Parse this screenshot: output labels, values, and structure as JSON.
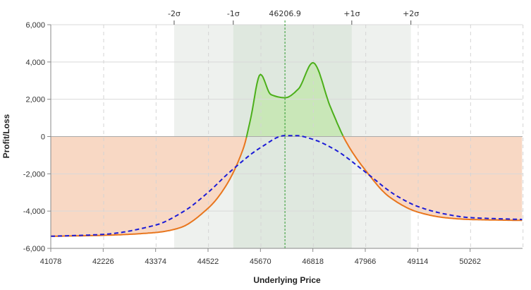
{
  "chart_data": {
    "type": "line",
    "xlabel": "Underlying Price",
    "ylabel": "Profit/Loss",
    "xlim": [
      41078,
      51410
    ],
    "ylim": [
      -6000,
      6000
    ],
    "x_ticks": [
      41078,
      42226,
      43374,
      44522,
      45670,
      46818,
      47966,
      49114,
      50262
    ],
    "x_tick_labels": [
      "41078",
      "42226",
      "43374",
      "44522",
      "45670",
      "46818",
      "47966",
      "49114",
      "50262"
    ],
    "y_ticks": [
      6000,
      4000,
      2000,
      0,
      -2000,
      -4000,
      -6000
    ],
    "y_tick_labels": [
      "6,000",
      "4,000",
      "2,000",
      "0",
      "-2,000",
      "-4,000",
      "-6,000"
    ],
    "grid": true,
    "current_price": 46206.9,
    "current_price_label": "46206.9",
    "sigma_bands": [
      {
        "label": "-2σ",
        "x": 43780
      },
      {
        "label": "-1σ",
        "x": 45075
      },
      {
        "label": "+1σ",
        "x": 47670
      },
      {
        "label": "+2σ",
        "x": 48965
      }
    ],
    "series": [
      {
        "style": "solid",
        "color_profit": "#4caf1a",
        "color_loss": "#e8761e",
        "x": [
          41078,
          42226,
          43374,
          43900,
          44522,
          44900,
          45300,
          45450,
          45670,
          45900,
          46206.9,
          46500,
          46818,
          47200,
          47550,
          47966,
          48500,
          49114,
          49700,
          50262,
          51400
        ],
        "y": [
          -5350,
          -5300,
          -5150,
          -4900,
          -3850,
          -2700,
          -600,
          900,
          3330,
          2250,
          2080,
          2550,
          3960,
          1600,
          -300,
          -1800,
          -3250,
          -4050,
          -4350,
          -4450,
          -4500
        ]
      },
      {
        "style": "dashed",
        "color": "#1c1cd6",
        "x": [
          41078,
          42226,
          43374,
          44000,
          44522,
          45000,
          45670,
          46206.9,
          46450,
          46818,
          47300,
          47966,
          48600,
          49114,
          49700,
          50262,
          51400
        ],
        "y": [
          -5350,
          -5250,
          -4750,
          -4000,
          -3000,
          -1900,
          -600,
          50,
          50,
          -150,
          -700,
          -1900,
          -3100,
          -3750,
          -4150,
          -4350,
          -4450
        ]
      }
    ],
    "colors": {
      "band_outer": "#eef1ee",
      "band_inner": "#dfe8df",
      "loss_fill": "#f8d8c4",
      "profit_fill": "#c9e7b8",
      "current_price_line": "#2f9a2f"
    }
  }
}
